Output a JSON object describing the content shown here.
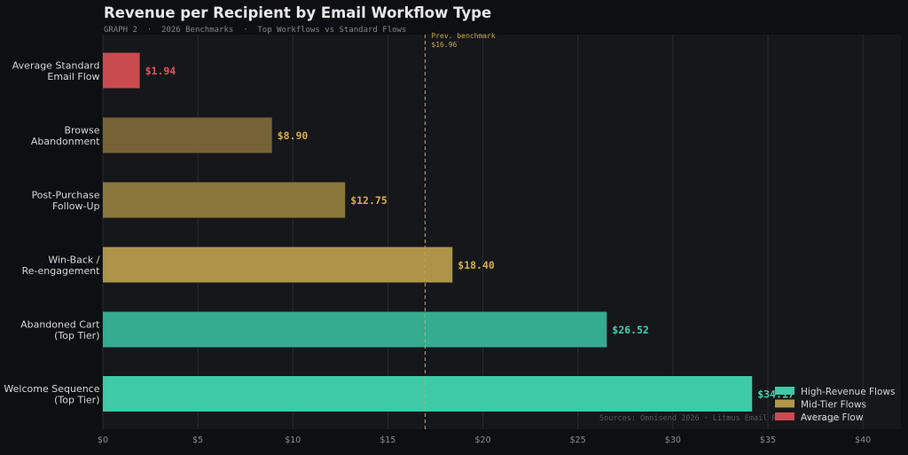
{
  "chart_data": {
    "type": "bar",
    "orientation": "horizontal",
    "title": "Revenue per Recipient by Email Workflow Type",
    "subtitle": "GRAPH 2  ·  2026 Benchmarks  ·  Top Workflows vs Standard Flows",
    "xlim": [
      0,
      42
    ],
    "x_ticks": [
      0,
      5,
      10,
      15,
      20,
      25,
      30,
      35,
      40
    ],
    "x_tick_labels": [
      "$0",
      "$5",
      "$10",
      "$15",
      "$20",
      "$25",
      "$30",
      "$35",
      "$40"
    ],
    "grid": "vertical",
    "bars": [
      {
        "label": [
          "Average Standard",
          "Email Flow"
        ],
        "value": 1.94,
        "value_label": "$1.94",
        "color": "#c94b4f",
        "label_color": "#e0555a"
      },
      {
        "label": [
          "Browse",
          "Abandonment"
        ],
        "value": 8.9,
        "value_label": "$8.90",
        "color": "#756335",
        "label_color": "#d4ad46"
      },
      {
        "label": [
          "Post-Purchase",
          "Follow-Up"
        ],
        "value": 12.75,
        "value_label": "$12.75",
        "color": "#8b773b",
        "label_color": "#d4ad46"
      },
      {
        "label": [
          "Win-Back /",
          "Re-engagement"
        ],
        "value": 18.4,
        "value_label": "$18.40",
        "color": "#ad9449",
        "label_color": "#d4ad46"
      },
      {
        "label": [
          "Abandoned Cart",
          "(Top Tier)"
        ],
        "value": 26.52,
        "value_label": "$26.52",
        "color": "#35ab8f",
        "label_color": "#3fd3ad"
      },
      {
        "label": [
          "Welcome Sequence",
          "(Top Tier)"
        ],
        "value": 34.17,
        "value_label": "$34.17",
        "color": "#3ec9a7",
        "label_color": "#3fd3ad"
      }
    ],
    "reference_line": {
      "value": 16.96,
      "label": "Prev. benchmark",
      "value_label": "$16.96",
      "color": "#c9a454"
    },
    "legend": {
      "placement": "bottom-right",
      "items": [
        {
          "name": "High-Revenue Flows",
          "color": "#3ec9a7"
        },
        {
          "name": "Mid-Tier Flows",
          "color": "#b2964a"
        },
        {
          "name": "Average Flow",
          "color": "#c94b4f"
        }
      ]
    },
    "source": "Sources: Omnisend 2026 · Litmus Email Re... · Klaviyo"
  },
  "colors": {
    "page_background": "#0e0f12",
    "plot_background": "#16171b",
    "grid": "#2a2b30",
    "axis_text": "#8c8d92",
    "label_text": "#d6d6d6",
    "title_text": "#e8e8e8"
  }
}
